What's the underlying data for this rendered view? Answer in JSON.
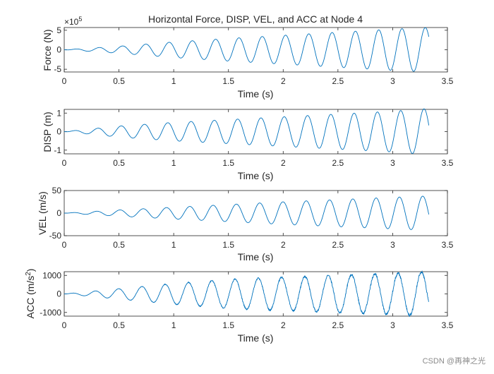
{
  "page": {
    "title": "Horizontal Force, DISP, VEL, and ACC at Node 4",
    "watermark": "CSDN @再神之光"
  },
  "chart_data": [
    {
      "type": "line",
      "name": "force",
      "ylabel": "Force (N)",
      "xlabel": "Time (s)",
      "exponent_base": "×10",
      "exponent_power": "5",
      "xlim": [
        0,
        3.5
      ],
      "ylim": [
        -5.7,
        5.7
      ],
      "xticks": [
        0,
        0.5,
        1,
        1.5,
        2,
        2.5,
        3,
        3.5
      ],
      "yticks": [
        -5,
        0,
        5
      ],
      "ytick_labels": [
        "-5",
        "0",
        "5"
      ],
      "duration_s": 3.33,
      "frequency_hz": 4.7,
      "peak_points": [
        [
          0,
          0
        ],
        [
          0.5,
          0.9
        ],
        [
          1,
          2.0
        ],
        [
          1.5,
          2.9
        ],
        [
          2,
          3.7
        ],
        [
          2.5,
          4.5
        ],
        [
          3,
          5.3
        ],
        [
          3.33,
          5.7
        ]
      ],
      "noise": 0
    },
    {
      "type": "line",
      "name": "disp",
      "ylabel": "DISP (m)",
      "xlabel": "Time (s)",
      "xlim": [
        0,
        3.5
      ],
      "ylim": [
        -1.2,
        1.2
      ],
      "xticks": [
        0,
        0.5,
        1,
        1.5,
        2,
        2.5,
        3,
        3.5
      ],
      "yticks": [
        -1,
        0,
        1
      ],
      "ytick_labels": [
        "-1",
        "0",
        "1"
      ],
      "duration_s": 3.33,
      "frequency_hz": 4.7,
      "peak_points": [
        [
          0,
          0
        ],
        [
          0.5,
          0.3
        ],
        [
          1,
          0.5
        ],
        [
          1.5,
          0.65
        ],
        [
          2,
          0.8
        ],
        [
          2.5,
          0.95
        ],
        [
          3,
          1.1
        ],
        [
          3.33,
          1.25
        ]
      ],
      "noise": 0
    },
    {
      "type": "line",
      "name": "vel",
      "ylabel": "VEL (m/s)",
      "xlabel": "Time (s)",
      "xlim": [
        0,
        3.5
      ],
      "ylim": [
        -50,
        50
      ],
      "xticks": [
        0,
        0.5,
        1,
        1.5,
        2,
        2.5,
        3,
        3.5
      ],
      "yticks": [
        -50,
        0,
        50
      ],
      "ytick_labels": [
        "-50",
        "0",
        "50"
      ],
      "duration_s": 3.33,
      "frequency_hz": 4.7,
      "peak_points": [
        [
          0,
          0
        ],
        [
          0.5,
          7
        ],
        [
          1,
          13
        ],
        [
          1.5,
          19
        ],
        [
          2,
          25
        ],
        [
          2.5,
          30
        ],
        [
          3,
          35
        ],
        [
          3.33,
          38
        ]
      ],
      "noise": 0
    },
    {
      "type": "line",
      "name": "acc",
      "ylabel": "ACC (m/s",
      "ylabel_sup": "2",
      "ylabel_end": ")",
      "xlabel": "Time (s)",
      "xlim": [
        0,
        3.5
      ],
      "ylim": [
        -1200,
        1200
      ],
      "xticks": [
        0,
        0.5,
        1,
        1.5,
        2,
        2.5,
        3,
        3.5
      ],
      "yticks": [
        -1000,
        0,
        1000
      ],
      "ytick_labels": [
        "-1000",
        "0",
        "1000"
      ],
      "duration_s": 3.33,
      "frequency_hz": 4.7,
      "peak_points": [
        [
          0,
          0
        ],
        [
          0.5,
          280
        ],
        [
          1,
          560
        ],
        [
          1.5,
          780
        ],
        [
          2,
          900
        ],
        [
          2.5,
          1000
        ],
        [
          3,
          1100
        ],
        [
          3.33,
          1200
        ]
      ],
      "noise": 0.09
    }
  ]
}
